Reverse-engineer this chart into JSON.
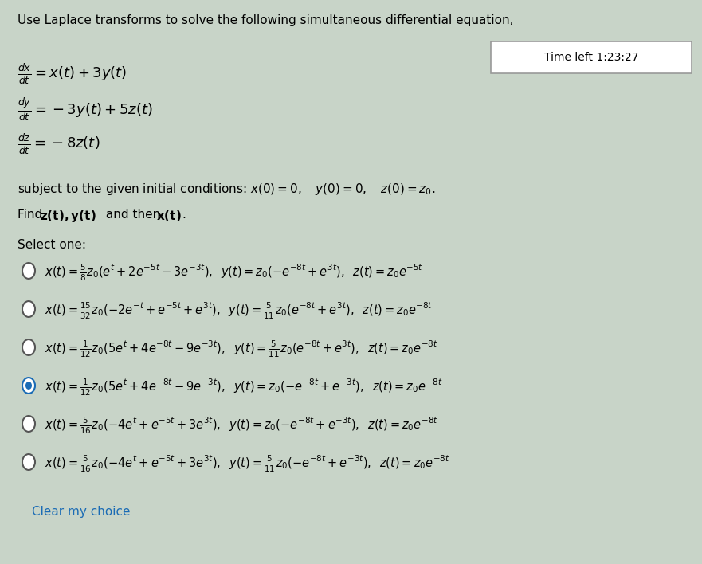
{
  "bg_color": "#c8d4c8",
  "title": "Use Laplace transforms to solve the following simultaneous differential equation,",
  "timer_text": "Time left 1:23:27",
  "eq1": "$\\frac{dx}{dt} = x(t) + 3y(t)$",
  "eq2": "$\\frac{dy}{dt} = -3y(t) + 5z(t)$",
  "eq3": "$\\frac{dz}{dt} = -8z(t)$",
  "initial_cond_plain": "subject to the given initial conditions: ",
  "initial_cond_math": "$x(0) = 0, \\quad y(0) = 0, \\quad z(0) = z_0.$",
  "find_text_plain": "Find ",
  "find_text_bold": "z(t), y(t)",
  "find_text_mid": " and then ",
  "find_text_bold2": "x(t)",
  "find_text_end": ".",
  "select_text": "Select one:",
  "options": [
    {
      "selected": false,
      "text": "$x(t) = \\frac{5}{8}z_0(e^{t} + 2e^{-5t} - 3e^{-3t}),\\;\\; y(t) = z_0(-e^{-8t} + e^{3t}),\\;\\; z(t) = z_0e^{-5t}$"
    },
    {
      "selected": false,
      "text": "$x(t) = \\frac{15}{32}z_0(-2e^{-t} + e^{-5t} + e^{3t}),\\;\\; y(t) = \\frac{5}{11}z_0(e^{-8t} + e^{3t}),\\;\\; z(t) = z_0e^{-8t}$"
    },
    {
      "selected": false,
      "text": "$x(t) = \\frac{1}{12}z_0(5e^{t} + 4e^{-8t} - 9e^{-3t}),\\;\\; y(t) = \\frac{5}{11}z_0(e^{-8t} + e^{3t}),\\;\\; z(t) = z_0e^{-8t}$"
    },
    {
      "selected": true,
      "text": "$x(t) = \\frac{1}{12}z_0(5e^{t} + 4e^{-8t} - 9e^{-3t}),\\;\\; y(t) = z_0(-e^{-8t} + e^{-3t}),\\;\\; z(t) = z_0e^{-8t}$"
    },
    {
      "selected": false,
      "text": "$x(t) = \\frac{5}{16}z_0(-4e^{t} + e^{-5t} + 3e^{3t}),\\;\\; y(t) = z_0(-e^{-8t} + e^{-3t}),\\;\\; z(t) = z_0e^{-8t}$"
    },
    {
      "selected": false,
      "text": "$x(t) = \\frac{5}{16}z_0(-4e^{t} + e^{-5t} + 3e^{3t}),\\;\\; y(t) = \\frac{5}{11}z_0(-e^{-8t} + e^{-3t}),\\;\\; z(t) = z_0e^{-8t}$"
    }
  ],
  "clear_text": "Clear my choice",
  "clear_color": "#1a6bb5",
  "title_fontsize": 11,
  "eq_fontsize": 13,
  "body_fontsize": 11,
  "option_fontsize": 10.5,
  "timer_fontsize": 10
}
